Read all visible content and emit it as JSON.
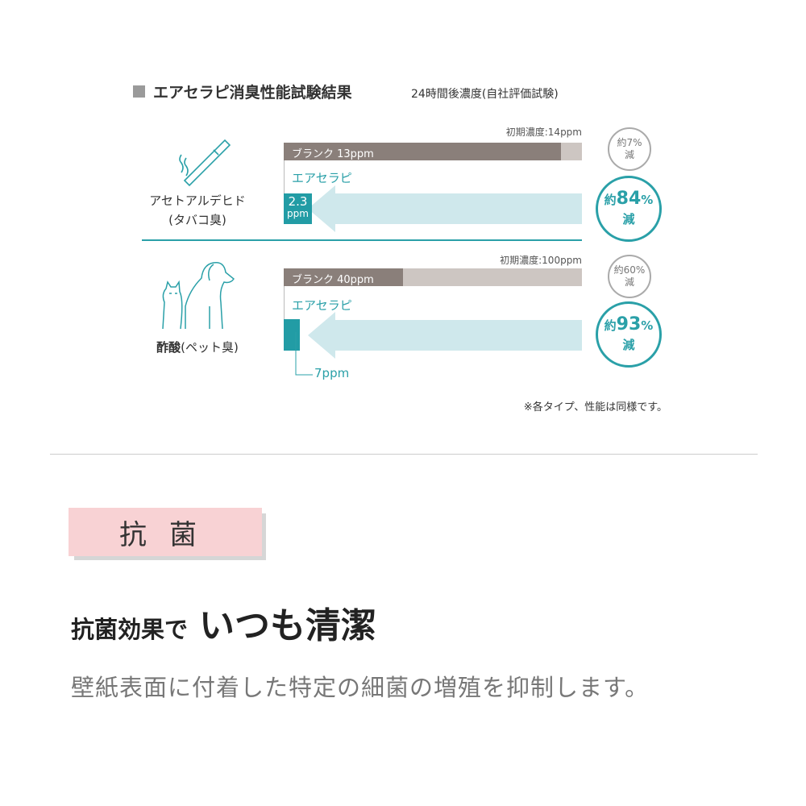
{
  "header": {
    "title": "エアセラピ消臭性能試験結果",
    "subtitle": "24時間後濃度(自社評価試験)"
  },
  "tests": [
    {
      "name": "アセトアルデヒド",
      "sub": "(タバコ臭)",
      "icon": "cigarette-icon",
      "initial": "初期濃度:14ppm",
      "blank_label": "ブランク 13ppm",
      "product": "エアセラピ",
      "product_value": "2.3",
      "product_unit": "ppm",
      "blank_reduction_pre": "約7%",
      "blank_reduction_post": "減",
      "product_reduction_pre": "約",
      "product_reduction_num": "84",
      "product_reduction_pct": "%",
      "product_reduction_post": "減"
    },
    {
      "name": "酢酸",
      "sub": "(ペット臭)",
      "icon": "dog-cat-icon",
      "initial": "初期濃度:100ppm",
      "blank_label": "ブランク 40ppm",
      "product": "エアセラピ",
      "product_value": "7ppm",
      "blank_reduction_pre": "約60%",
      "blank_reduction_post": "減",
      "product_reduction_pre": "約",
      "product_reduction_num": "93",
      "product_reduction_pct": "%",
      "product_reduction_post": "減"
    }
  ],
  "note": "※各タイプ、性能は同様です。",
  "section": {
    "badge": "抗菌",
    "heading_small": "抗菌効果で",
    "heading_large": "いつも清潔",
    "description": "壁紙表面に付着した特定の細菌の増殖を抑制します。"
  },
  "colors": {
    "teal": "#229ca5",
    "blank": "#8a7f7a",
    "initial": "#cdc6c2",
    "arrow": "#cfe8ec",
    "badge": "#f8d2d4"
  },
  "chart_data": {
    "type": "bar",
    "orientation": "horizontal",
    "title": "エアセラピ消臭性能試験結果",
    "subtitle": "24時間後濃度(自社評価試験)",
    "unit": "ppm",
    "groups": [
      {
        "category": "アセトアルデヒド(タバコ臭)",
        "initial": 14,
        "blank": 13,
        "product": 2.3,
        "blank_reduction_pct": 7,
        "product_reduction_pct": 84
      },
      {
        "category": "酢酸(ペット臭)",
        "initial": 100,
        "blank": 40,
        "product": 7,
        "blank_reduction_pct": 60,
        "product_reduction_pct": 93
      }
    ]
  }
}
